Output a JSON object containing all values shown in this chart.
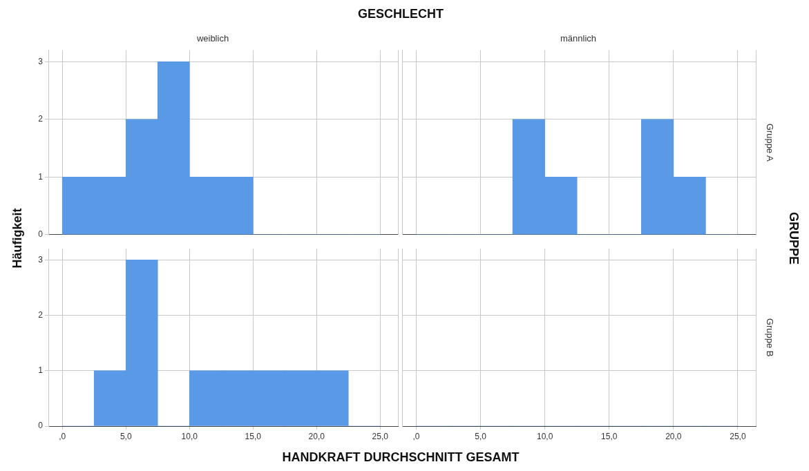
{
  "chart_data": [
    {
      "type": "histogram",
      "title": "weiblich",
      "bins": [
        0,
        2.5,
        5,
        7.5,
        10,
        12.5,
        15,
        17.5,
        20,
        22.5,
        25
      ],
      "values": [
        1,
        1,
        2,
        3,
        1,
        1,
        0,
        0,
        0,
        0
      ],
      "color": "#5a99e6",
      "xlim": [
        -1.1,
        26.4
      ],
      "xticks": [
        0,
        5,
        10,
        15,
        20,
        25
      ],
      "ylim": [
        0,
        3.2
      ],
      "yticks": [
        0,
        1,
        2,
        3
      ],
      "grid": true,
      "tick_labels": "y"
    },
    {
      "type": "histogram",
      "title": "männlich",
      "y2label": "Gruppe A",
      "bins": [
        0,
        2.5,
        5,
        7.5,
        10,
        12.5,
        15,
        17.5,
        20,
        22.5,
        25
      ],
      "values": [
        0,
        0,
        0,
        2,
        1,
        0,
        0,
        2,
        1,
        0
      ],
      "color": "#5a99e6",
      "xlim": [
        -1.1,
        26.4
      ],
      "xticks": [
        0,
        5,
        10,
        15,
        20,
        25
      ],
      "ylim": [
        0,
        3.2
      ],
      "yticks": [
        0,
        1,
        2,
        3
      ],
      "grid": true,
      "tick_labels": false
    },
    {
      "type": "histogram",
      "bins": [
        0,
        2.5,
        5,
        7.5,
        10,
        12.5,
        15,
        17.5,
        20,
        22.5,
        25
      ],
      "values": [
        0,
        1,
        3,
        0,
        1,
        1,
        1,
        1,
        1,
        0
      ],
      "color": "#5a99e6",
      "xlim": [
        -1.1,
        26.4
      ],
      "xticks": [
        {
          "value": 0,
          "label": ",0"
        },
        {
          "value": 5,
          "label": "5,0"
        },
        {
          "value": 10,
          "label": "10,0"
        },
        {
          "value": 15,
          "label": "15,0"
        },
        {
          "value": 20,
          "label": "20,0"
        },
        {
          "value": 25,
          "label": "25,0"
        }
      ],
      "ylim": [
        0,
        3.2
      ],
      "yticks": [
        0,
        1,
        2,
        3
      ],
      "grid": true
    },
    {
      "type": "histogram",
      "y2label": "Gruppe B",
      "bins": [
        0,
        2.5,
        5,
        7.5,
        10,
        12.5,
        15,
        17.5,
        20,
        22.5,
        25
      ],
      "values": [
        0,
        0,
        0,
        0,
        0,
        0,
        0,
        0,
        0,
        0
      ],
      "color": "#5a99e6",
      "xlim": [
        -1.1,
        26.4
      ],
      "xticks": [
        {
          "value": 0,
          "label": ",0"
        },
        {
          "value": 5,
          "label": "5,0"
        },
        {
          "value": 10,
          "label": "10,0"
        },
        {
          "value": 15,
          "label": "15,0"
        },
        {
          "value": 20,
          "label": "20,0"
        },
        {
          "value": 25,
          "label": "25,0"
        }
      ],
      "ylim": [
        0,
        3.2
      ],
      "yticks": [
        0,
        1,
        2,
        3
      ],
      "grid": true,
      "tick_labels": "x"
    },
    {
      "type": "other",
      "title": "GESCHLECHT",
      "xlabel": "HANDKRAFT DURCHSCHNITT GESAMT",
      "ylabel": "Häufigkeit",
      "y2label": "GRUPPE"
    }
  ]
}
